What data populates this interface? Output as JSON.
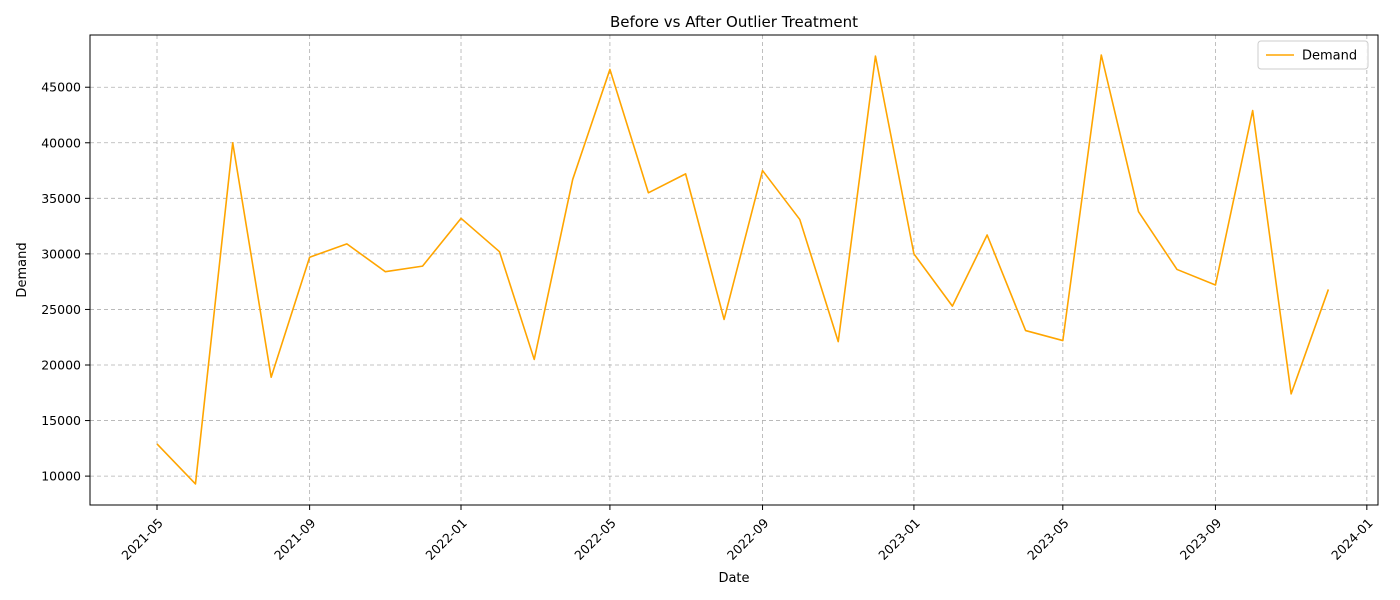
{
  "chart_data": {
    "type": "line",
    "title": "Before vs After Outlier Treatment",
    "xlabel": "Date",
    "ylabel": "Demand",
    "grid": true,
    "legend_position": "top-right",
    "x_ticks": [
      "2021-05",
      "2021-09",
      "2022-01",
      "2022-05",
      "2022-09",
      "2023-01",
      "2023-05",
      "2023-09",
      "2024-01"
    ],
    "y_ticks": [
      10000,
      15000,
      20000,
      25000,
      30000,
      35000,
      40000,
      45000
    ],
    "xlim": [
      "2021-03-08",
      "2024-01-10"
    ],
    "ylim": [
      7400,
      49700
    ],
    "series": [
      {
        "name": "Demand",
        "color": "#ffa500",
        "x": [
          "2021-05-01",
          "2021-06-01",
          "2021-07-01",
          "2021-08-01",
          "2021-09-01",
          "2021-10-01",
          "2021-11-01",
          "2021-12-01",
          "2022-01-01",
          "2022-02-01",
          "2022-03-01",
          "2022-04-01",
          "2022-05-01",
          "2022-06-01",
          "2022-07-01",
          "2022-08-01",
          "2022-09-01",
          "2022-10-01",
          "2022-11-01",
          "2022-12-01",
          "2023-01-01",
          "2023-02-01",
          "2023-03-01",
          "2023-04-01",
          "2023-05-01",
          "2023-06-01",
          "2023-07-01",
          "2023-08-01",
          "2023-09-01",
          "2023-10-01",
          "2023-11-01",
          "2023-12-01"
        ],
        "y": [
          12900,
          9300,
          40000,
          18900,
          29700,
          30900,
          28400,
          28900,
          33200,
          30200,
          20500,
          36700,
          46600,
          35500,
          37200,
          24100,
          37500,
          33100,
          22100,
          47800,
          30000,
          25300,
          31700,
          23100,
          22200,
          47900,
          33800,
          28600,
          27200,
          42900,
          17400,
          26800
        ]
      }
    ]
  }
}
